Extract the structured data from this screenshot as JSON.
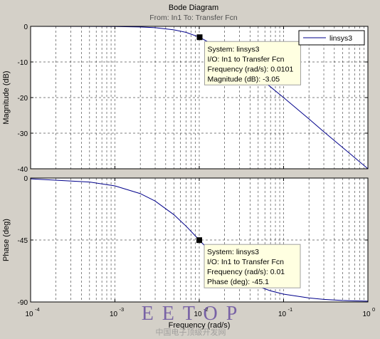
{
  "figure": {
    "title": "Bode Diagram",
    "subtitle": "From: In1  To: Transfer Fcn",
    "xlabel": "Frequency  (rad/s)"
  },
  "chart_data": [
    {
      "type": "line",
      "name": "magnitude",
      "ylabel": "Magnitude (dB)",
      "xscale": "log",
      "xlim": [
        0.0001,
        1
      ],
      "ylim": [
        -40,
        0
      ],
      "yticks": [
        0,
        -10,
        -20,
        -30,
        -40
      ],
      "ytick_labels": [
        "0",
        "-10",
        "-20",
        "-30",
        "-40"
      ],
      "grid": true,
      "legend": {
        "placement": "top-right",
        "entries": [
          "linsys3"
        ]
      },
      "series": [
        {
          "name": "linsys3",
          "color": "#00008b",
          "x": [
            0.0001,
            0.001,
            0.002,
            0.003,
            0.005,
            0.007,
            0.01,
            0.015,
            0.02,
            0.03,
            0.05,
            0.07,
            0.1,
            0.2,
            0.3,
            0.5,
            0.7,
            1
          ],
          "y": [
            0,
            -0.04,
            -0.17,
            -0.37,
            -0.97,
            -1.7,
            -3.01,
            -5.3,
            -7.0,
            -10.0,
            -14.1,
            -17.0,
            -20.0,
            -26.0,
            -29.6,
            -34.0,
            -36.9,
            -40.0
          ]
        }
      ],
      "datatip": {
        "x": 0.0101,
        "y": -3.05,
        "lines": [
          "System: linsys3",
          "I/O: In1 to Transfer Fcn",
          "Frequency (rad/s): 0.0101",
          "Magnitude (dB): -3.05"
        ]
      }
    },
    {
      "type": "line",
      "name": "phase",
      "ylabel": "Phase (deg)",
      "xscale": "log",
      "xlim": [
        0.0001,
        1
      ],
      "ylim": [
        -90,
        0
      ],
      "yticks": [
        0,
        -45,
        -90
      ],
      "ytick_labels": [
        "0",
        "-45",
        "-90"
      ],
      "grid": true,
      "series": [
        {
          "name": "linsys3",
          "color": "#00008b",
          "x": [
            0.0001,
            0.0005,
            0.001,
            0.002,
            0.003,
            0.005,
            0.007,
            0.01,
            0.015,
            0.02,
            0.03,
            0.05,
            0.07,
            0.1,
            0.2,
            0.3,
            0.5,
            0.7,
            1
          ],
          "y": [
            -0.6,
            -2.9,
            -5.7,
            -11.3,
            -16.7,
            -26.6,
            -35.0,
            -45.0,
            -56.3,
            -63.4,
            -71.6,
            -78.7,
            -81.9,
            -84.3,
            -87.1,
            -88.1,
            -88.9,
            -89.2,
            -89.4
          ]
        }
      ],
      "datatip": {
        "x": 0.01,
        "y": -45.1,
        "lines": [
          "System: linsys3",
          "I/O: In1 to Transfer Fcn",
          "Frequency (rad/s): 0.01",
          "Phase (deg): -45.1"
        ]
      }
    }
  ],
  "xticks": {
    "values": [
      0.0001,
      0.001,
      0.01,
      0.1,
      1
    ],
    "base_labels": [
      "10",
      "10",
      "10",
      "10",
      "10"
    ],
    "exponent_labels": [
      "-4",
      "-3",
      "-2",
      "-1",
      "0"
    ]
  },
  "watermark": {
    "logo": "EETOP",
    "caption": "中国电子顶级开发网"
  }
}
